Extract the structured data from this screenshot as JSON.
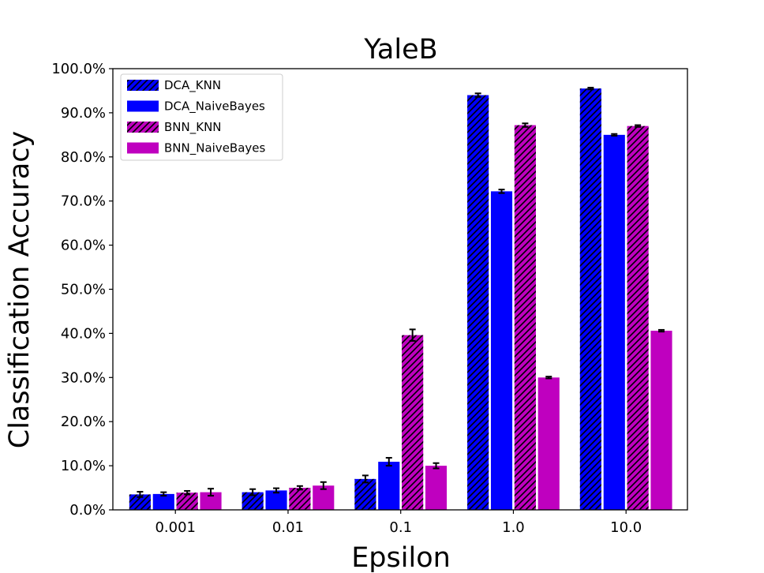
{
  "chart_data": {
    "type": "bar",
    "title": "YaleB",
    "xlabel": "Epsilon",
    "ylabel": "Classification Accuracy",
    "categories": [
      "0.001",
      "0.01",
      "0.1",
      "1.0",
      "10.0"
    ],
    "ylim": [
      0,
      100
    ],
    "yticks": [
      "0.0%",
      "10.0%",
      "20.0%",
      "30.0%",
      "40.0%",
      "50.0%",
      "60.0%",
      "70.0%",
      "80.0%",
      "90.0%",
      "100.0%"
    ],
    "legend_position": "top-left",
    "grid": false,
    "series": [
      {
        "name": "DCA_KNN",
        "color": "#0000ff",
        "hatch": true,
        "values": [
          3.5,
          4.0,
          7.0,
          94.0,
          95.5
        ],
        "errors": [
          0.6,
          0.7,
          0.8,
          0.4,
          0.2
        ]
      },
      {
        "name": "DCA_NaiveBayes",
        "color": "#0000ff",
        "hatch": false,
        "values": [
          3.6,
          4.4,
          10.9,
          72.2,
          85.0
        ],
        "errors": [
          0.4,
          0.5,
          0.9,
          0.4,
          0.2
        ]
      },
      {
        "name": "BNN_KNN",
        "color": "#bf00bf",
        "hatch": true,
        "values": [
          3.9,
          5.0,
          39.6,
          87.2,
          87.0
        ],
        "errors": [
          0.4,
          0.4,
          1.3,
          0.4,
          0.2
        ]
      },
      {
        "name": "BNN_NaiveBayes",
        "color": "#bf00bf",
        "hatch": false,
        "values": [
          4.0,
          5.5,
          10.0,
          30.0,
          40.6
        ],
        "errors": [
          0.8,
          0.8,
          0.6,
          0.2,
          0.2
        ]
      }
    ]
  }
}
